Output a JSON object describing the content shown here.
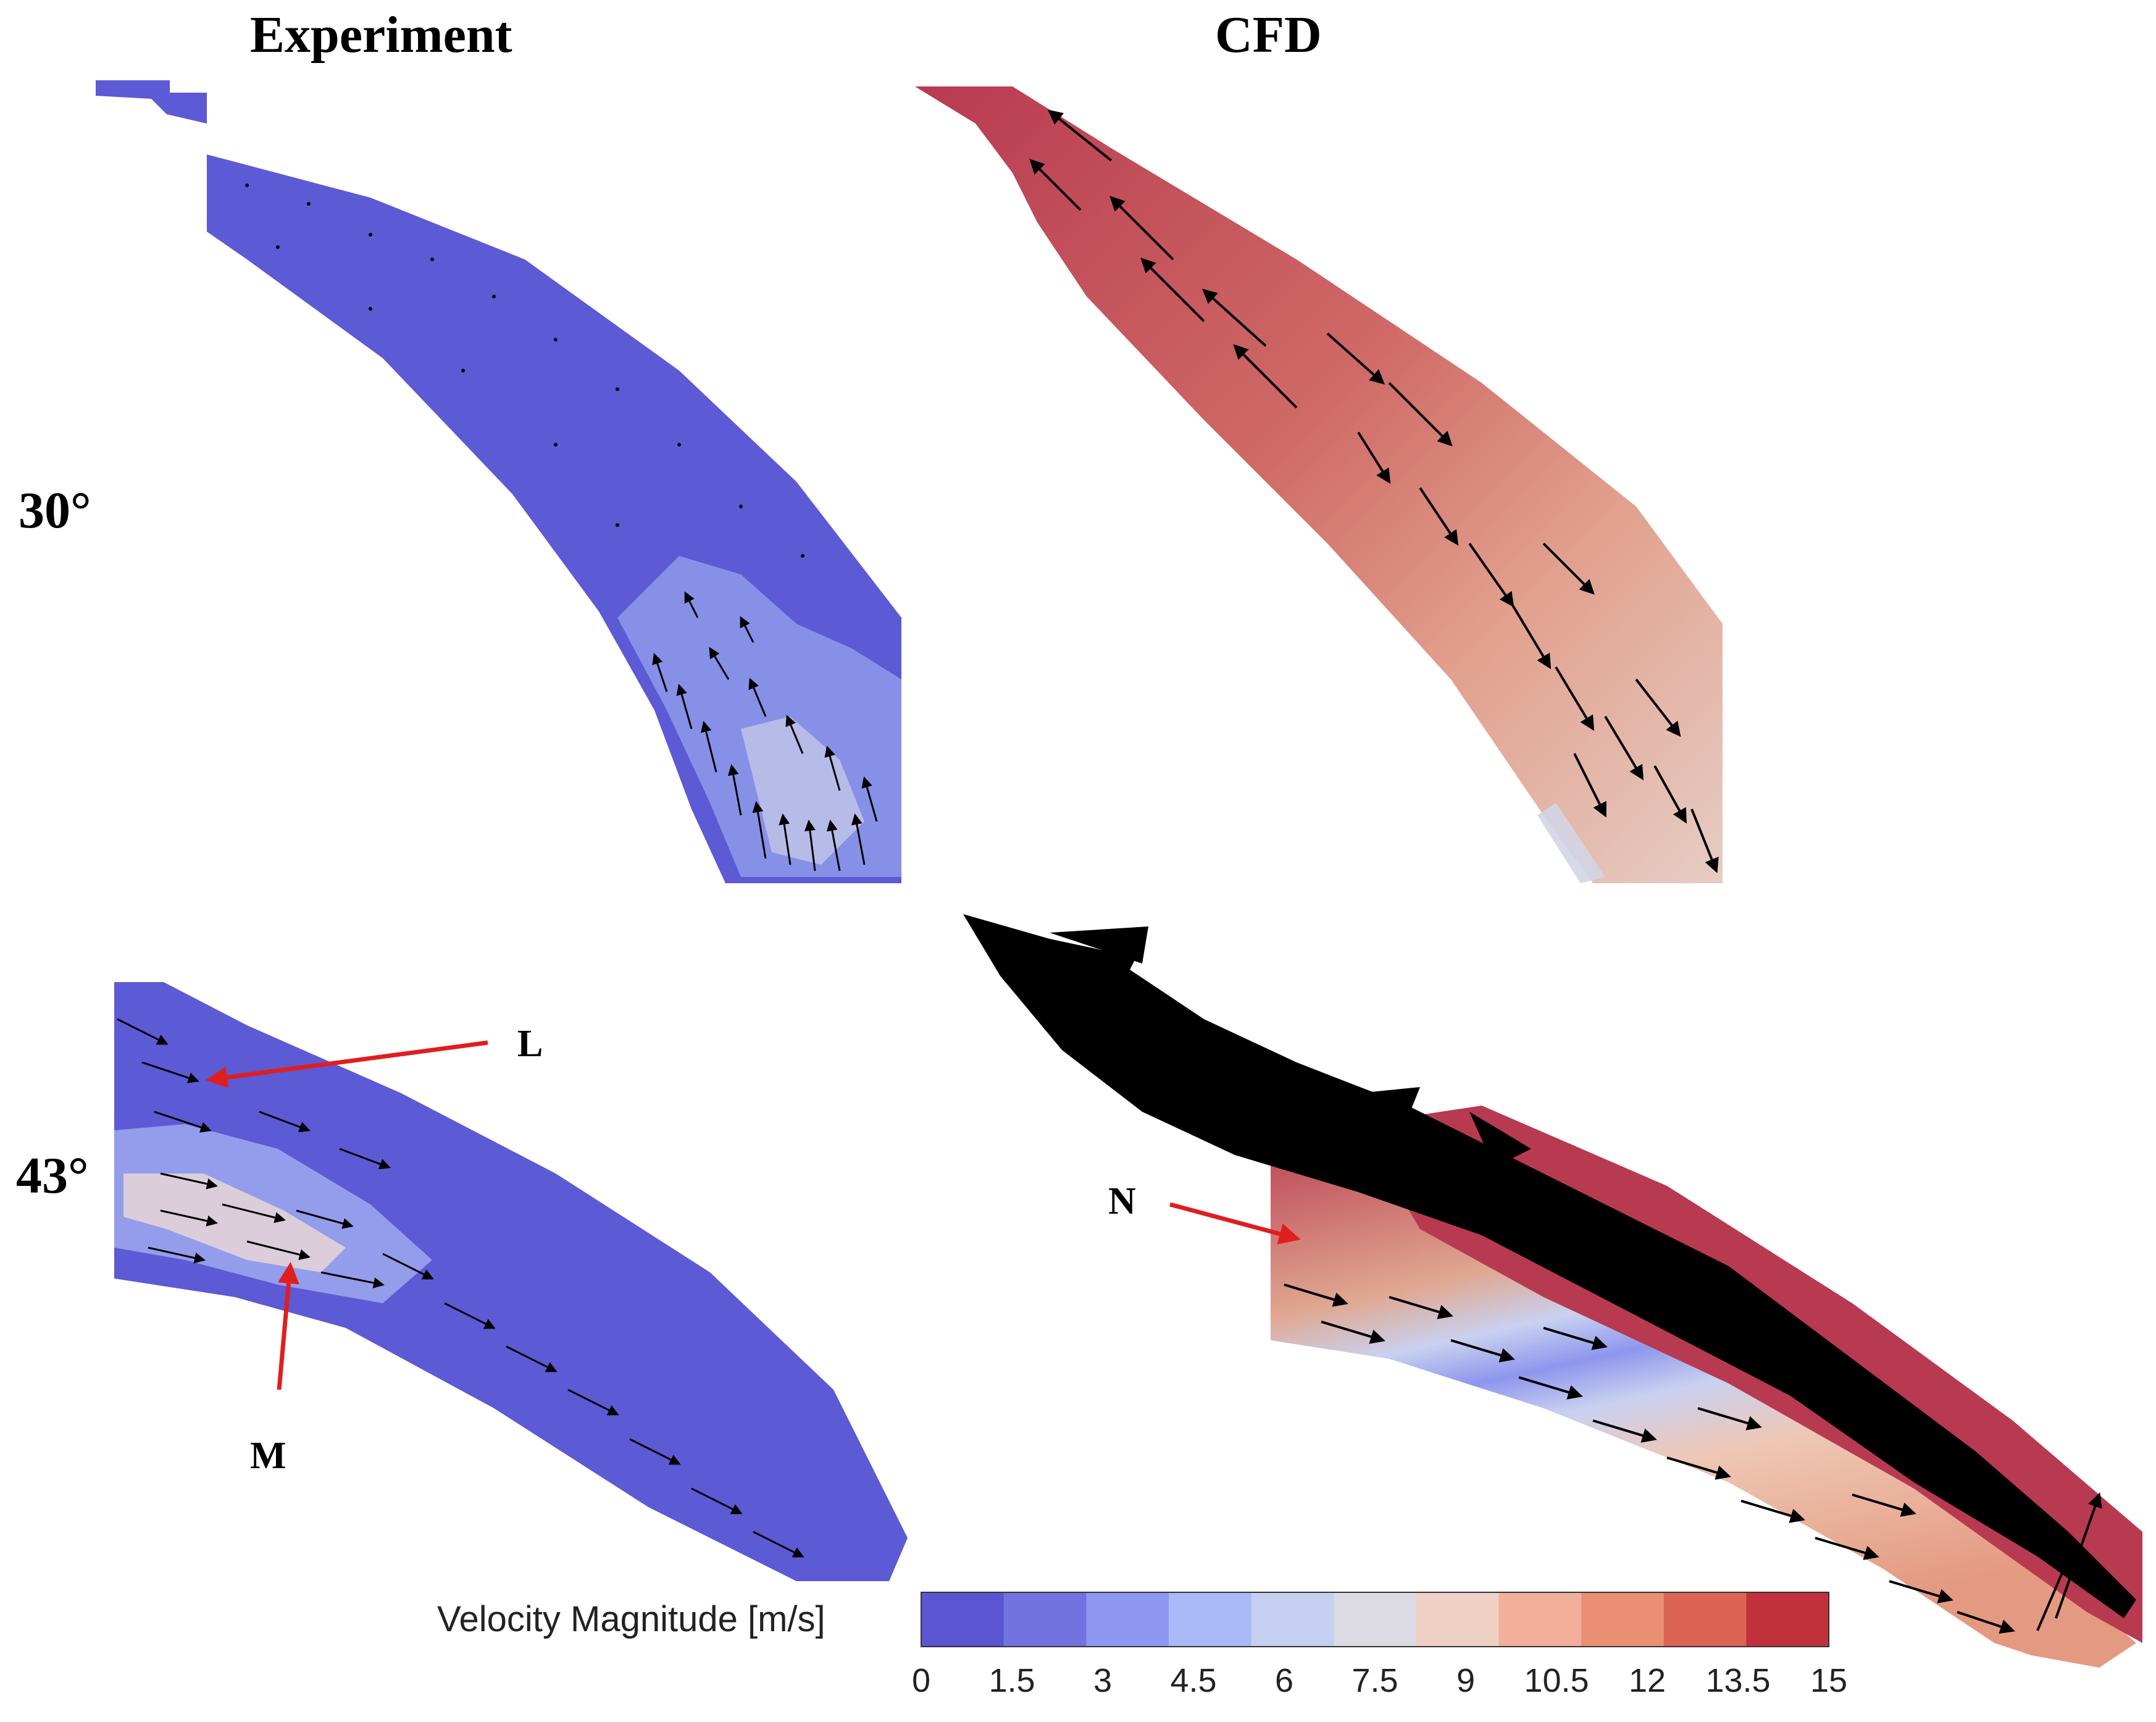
{
  "headers": {
    "experiment": "Experiment",
    "cfd": "CFD"
  },
  "angles": {
    "top": "30°",
    "bottom": "43°"
  },
  "markers": {
    "l": "L",
    "m": "M",
    "n": "N"
  },
  "colorbar": {
    "title": "Velocity Magnitude [m/s]",
    "ticks": [
      "0",
      "1.5",
      "3",
      "4.5",
      "6",
      "7.5",
      "9",
      "10.5",
      "12",
      "13.5",
      "15"
    ],
    "colors": [
      "#5b55d2",
      "#7272e0",
      "#8d96f1",
      "#a8b9f7",
      "#c5d0f2",
      "#dcdbe3",
      "#efd0c4",
      "#f2b09a",
      "#ea8f73",
      "#dc6454",
      "#c0313c"
    ]
  },
  "palette": {
    "exp_bg": "#5c5ad4",
    "exp_light": "#9aa6f0",
    "cfd_dark": "#b83a50",
    "cfd_mid": "#dc8a7c",
    "cfd_light": "#e9c4b6",
    "cfd_pale": "#cfd3e6",
    "annotation": "#e01e1e"
  }
}
